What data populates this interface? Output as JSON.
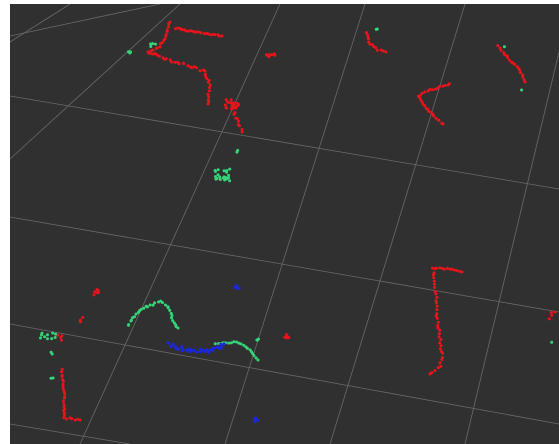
{
  "viewport": {
    "name": "point-cloud-viewport",
    "background": "#303030",
    "grid_color": "#6a6a6a"
  },
  "legend": {
    "colors": {
      "red": "#e8141c",
      "green": "#35d67a",
      "blue": "#1a26e0"
    }
  }
}
